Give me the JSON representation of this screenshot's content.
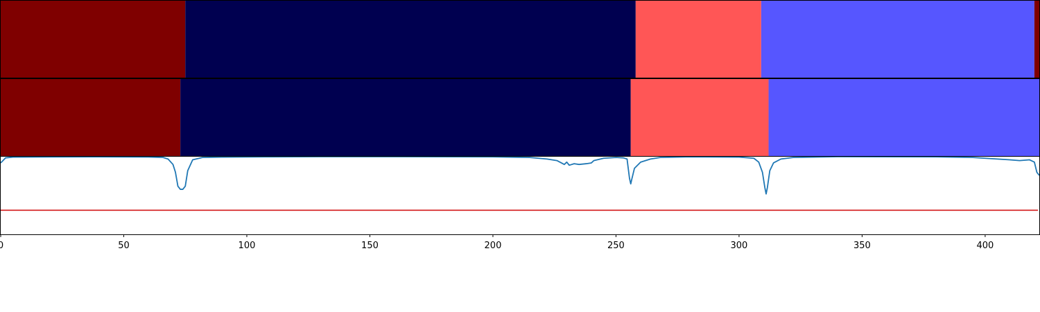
{
  "chart_data": [
    {
      "type": "segment-bar",
      "x_range": [
        0,
        422
      ],
      "segments": [
        {
          "start": 0,
          "end": 75,
          "color": "#7f0000"
        },
        {
          "start": 75,
          "end": 258,
          "color": "#000050"
        },
        {
          "start": 258,
          "end": 309,
          "color": "#ff5656"
        },
        {
          "start": 309,
          "end": 420,
          "color": "#5656ff"
        },
        {
          "start": 420,
          "end": 422,
          "color": "#7f0000"
        }
      ]
    },
    {
      "type": "segment-bar",
      "x_range": [
        0,
        422
      ],
      "segments": [
        {
          "start": 0,
          "end": 73,
          "color": "#7f0000"
        },
        {
          "start": 73,
          "end": 256,
          "color": "#000050"
        },
        {
          "start": 256,
          "end": 312,
          "color": "#ff5656"
        },
        {
          "start": 312,
          "end": 422,
          "color": "#5656ff"
        }
      ]
    },
    {
      "type": "line",
      "x_range": [
        0,
        422
      ],
      "y_range": [
        0,
        1
      ],
      "threshold": {
        "y": 0.31,
        "color": "#d62728"
      },
      "line_color": "#1f77b4",
      "points": [
        [
          0,
          0.92
        ],
        [
          2,
          0.985
        ],
        [
          5,
          0.995
        ],
        [
          20,
          0.997
        ],
        [
          40,
          0.998
        ],
        [
          60,
          0.996
        ],
        [
          66,
          0.99
        ],
        [
          68,
          0.97
        ],
        [
          70,
          0.9
        ],
        [
          71,
          0.8
        ],
        [
          72,
          0.62
        ],
        [
          73,
          0.58
        ],
        [
          74,
          0.58
        ],
        [
          75,
          0.62
        ],
        [
          76,
          0.82
        ],
        [
          78,
          0.96
        ],
        [
          82,
          0.99
        ],
        [
          90,
          0.995
        ],
        [
          110,
          0.998
        ],
        [
          130,
          1.0
        ],
        [
          160,
          1.0
        ],
        [
          200,
          0.998
        ],
        [
          215,
          0.99
        ],
        [
          222,
          0.97
        ],
        [
          226,
          0.95
        ],
        [
          229,
          0.9
        ],
        [
          230,
          0.93
        ],
        [
          231,
          0.89
        ],
        [
          233,
          0.91
        ],
        [
          235,
          0.9
        ],
        [
          238,
          0.91
        ],
        [
          240,
          0.92
        ],
        [
          241,
          0.95
        ],
        [
          245,
          0.98
        ],
        [
          250,
          0.99
        ],
        [
          253,
          0.985
        ],
        [
          254.5,
          0.97
        ],
        [
          255.5,
          0.72
        ],
        [
          256,
          0.65
        ],
        [
          256.5,
          0.72
        ],
        [
          257.5,
          0.85
        ],
        [
          260,
          0.93
        ],
        [
          264,
          0.97
        ],
        [
          268,
          0.99
        ],
        [
          280,
          0.998
        ],
        [
          300,
          0.995
        ],
        [
          306,
          0.98
        ],
        [
          308,
          0.93
        ],
        [
          309.5,
          0.8
        ],
        [
          310.5,
          0.6
        ],
        [
          311,
          0.52
        ],
        [
          311.5,
          0.6
        ],
        [
          312.5,
          0.82
        ],
        [
          314,
          0.92
        ],
        [
          317,
          0.97
        ],
        [
          322,
          0.99
        ],
        [
          340,
          1.0
        ],
        [
          380,
          0.998
        ],
        [
          395,
          0.99
        ],
        [
          405,
          0.97
        ],
        [
          410,
          0.96
        ],
        [
          414,
          0.95
        ],
        [
          418,
          0.96
        ],
        [
          420,
          0.93
        ],
        [
          421,
          0.8
        ],
        [
          422,
          0.76
        ]
      ]
    }
  ],
  "x_axis": {
    "ticks": [
      0,
      50,
      100,
      150,
      200,
      250,
      300,
      350,
      400
    ],
    "tick_labels": [
      "0",
      "50",
      "100",
      "150",
      "200",
      "250",
      "300",
      "350",
      "400"
    ]
  }
}
